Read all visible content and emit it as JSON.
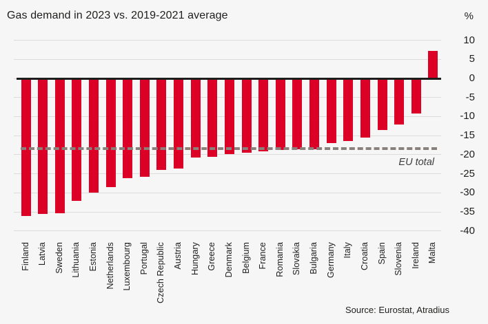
{
  "header": {
    "title": "Gas demand in 2023 vs. 2019-2021 average",
    "unit_label": "%"
  },
  "footer": {
    "source": "Source: Eurostat, Atradius"
  },
  "chart_data": {
    "type": "bar",
    "title": "Gas demand in 2023 vs. 2019-2021 average",
    "unit": "%",
    "categories": [
      "Finland",
      "Latvia",
      "Sweden",
      "Lithuania",
      "Estonia",
      "Netherlands",
      "Luxembourg",
      "Portugal",
      "Czech Republic",
      "Austria",
      "Hungary",
      "Greece",
      "Denmark",
      "Belgium",
      "France",
      "Romania",
      "Slovakia",
      "Bulgaria",
      "Germany",
      "Italy",
      "Croatia",
      "Spain",
      "Slovenia",
      "Ireland",
      "Malta"
    ],
    "values": [
      -36.0,
      -35.5,
      -35.3,
      -32.0,
      -30.0,
      -28.5,
      -26.2,
      -25.7,
      -24.0,
      -23.6,
      -20.7,
      -20.6,
      -19.8,
      -19.5,
      -19.1,
      -18.7,
      -18.6,
      -18.5,
      -16.9,
      -16.4,
      -15.5,
      -13.6,
      -12.0,
      -9.2,
      7.2
    ],
    "yticks": [
      10,
      5,
      0,
      -5,
      -10,
      -15,
      -20,
      -25,
      -30,
      -35,
      -40
    ],
    "ylim": [
      -40,
      10
    ],
    "grid": "horizontal",
    "reference_line": {
      "label": "EU total",
      "value": -18.3
    },
    "colors": {
      "bar": "#dc0026",
      "zero_line": "#1d1d1b",
      "gridline": "#dcdcdc",
      "reference_line": "#8a817c",
      "background": "#f6f6f6",
      "text": "#1d1d1b"
    },
    "source": "Source: Eurostat, Atradius"
  }
}
